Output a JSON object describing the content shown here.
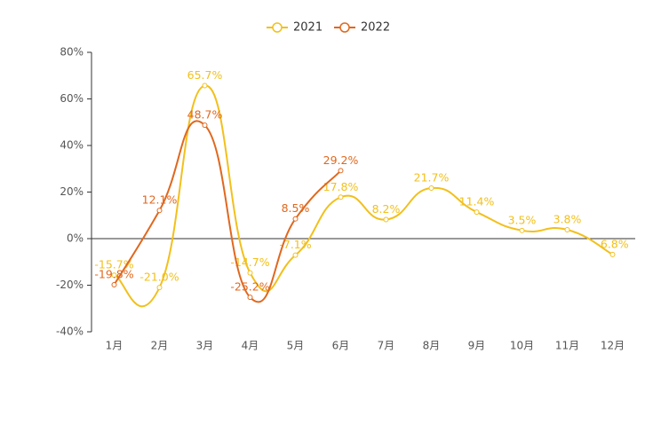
{
  "chart_data": {
    "type": "line",
    "categories": [
      "1月",
      "2月",
      "3月",
      "4月",
      "5月",
      "6月",
      "7月",
      "8月",
      "9月",
      "10月",
      "11月",
      "12月"
    ],
    "series": [
      {
        "name": "2021",
        "color": "#f2c01c",
        "values": [
          -15.7,
          -21.0,
          65.7,
          -14.7,
          -7.1,
          17.8,
          8.2,
          21.7,
          11.4,
          3.5,
          3.8,
          -6.8
        ],
        "value_labels": [
          "-15.7%",
          "-21.0%",
          "65.7%",
          "-14.7%",
          "-7.1%",
          "17.8%",
          "8.2%",
          "21.7%",
          "11.4%",
          "3.5%",
          "3.8%",
          "-6.8%"
        ]
      },
      {
        "name": "2022",
        "color": "#e0681e",
        "values": [
          -19.8,
          12.1,
          48.7,
          -25.2,
          8.5,
          29.2,
          null,
          null,
          null,
          null,
          null,
          null
        ],
        "value_labels": [
          "-19.8%",
          "12.1%",
          "48.7%",
          "-25.2%",
          "8.5%",
          "29.2%",
          null,
          null,
          null,
          null,
          null,
          null
        ]
      }
    ],
    "ylim": [
      -40,
      80
    ],
    "yticks": [
      {
        "value": -40,
        "label": "-40%"
      },
      {
        "value": -20,
        "label": "-20%"
      },
      {
        "value": 0,
        "label": "0%"
      },
      {
        "value": 20,
        "label": "20%"
      },
      {
        "value": 40,
        "label": "40%"
      },
      {
        "value": 60,
        "label": "60%"
      },
      {
        "value": 80,
        "label": "80%"
      }
    ],
    "legend": "top"
  }
}
